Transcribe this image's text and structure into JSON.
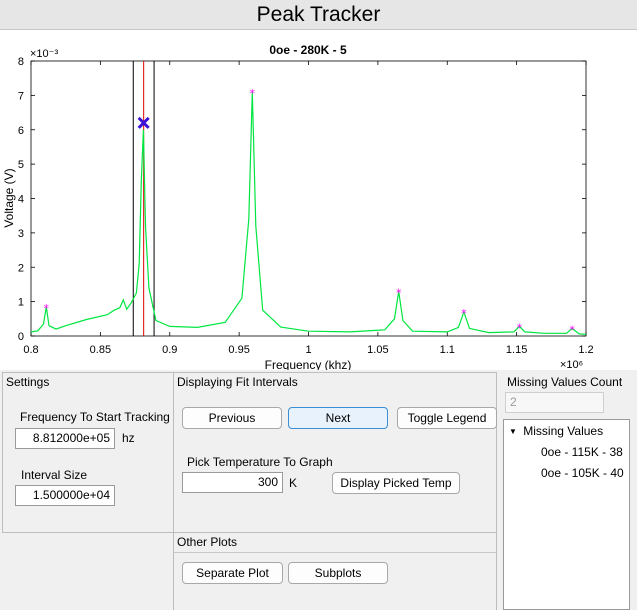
{
  "window": {
    "title": "Peak Tracker"
  },
  "chart_data": {
    "type": "line",
    "title": "0oe - 280K - 5",
    "xlabel": "Frequency (khz)",
    "ylabel": "Voltage (V)",
    "x_exponent": "×10⁶",
    "y_exponent": "×10⁻³",
    "xlim": [
      0.8,
      1.2
    ],
    "ylim": [
      0,
      8
    ],
    "xticks": [
      "0.8",
      "0.85",
      "0.9",
      "0.95",
      "1",
      "1.05",
      "1.1",
      "1.15",
      "1.2"
    ],
    "yticks": [
      "0",
      "1",
      "2",
      "3",
      "4",
      "5",
      "6",
      "7",
      "8"
    ],
    "grid": false,
    "series": [
      {
        "color": "#00e640",
        "x": [
          0.8,
          0.805,
          0.809,
          0.811,
          0.813,
          0.818,
          0.825,
          0.84,
          0.855,
          0.86,
          0.864,
          0.8665,
          0.869,
          0.872,
          0.876,
          0.878,
          0.8795,
          0.881,
          0.8825,
          0.885,
          0.89,
          0.9,
          0.92,
          0.94,
          0.952,
          0.957,
          0.9595,
          0.962,
          0.967,
          0.98,
          1.0,
          1.03,
          1.055,
          1.062,
          1.065,
          1.068,
          1.075,
          1.1,
          1.108,
          1.112,
          1.116,
          1.13,
          1.148,
          1.152,
          1.156,
          1.17,
          1.186,
          1.19,
          1.195,
          1.2
        ],
        "y": [
          0.12,
          0.15,
          0.35,
          0.85,
          0.3,
          0.2,
          0.3,
          0.48,
          0.62,
          0.75,
          0.82,
          1.05,
          0.78,
          0.95,
          1.25,
          2.1,
          4.5,
          6.0,
          3.2,
          1.4,
          0.45,
          0.28,
          0.25,
          0.4,
          1.1,
          3.4,
          7.1,
          3.2,
          0.75,
          0.26,
          0.14,
          0.12,
          0.18,
          0.5,
          1.3,
          0.45,
          0.14,
          0.12,
          0.25,
          0.7,
          0.22,
          0.1,
          0.12,
          0.28,
          0.12,
          0.08,
          0.08,
          0.22,
          0.06,
          0.05
        ]
      }
    ],
    "peaks": [
      {
        "x": 0.811,
        "y": 0.85
      },
      {
        "x": 0.9595,
        "y": 7.1
      },
      {
        "x": 1.065,
        "y": 1.3
      },
      {
        "x": 1.112,
        "y": 0.7
      },
      {
        "x": 1.152,
        "y": 0.28
      },
      {
        "x": 1.19,
        "y": 0.22
      }
    ],
    "tracked_point": {
      "x": 0.8812,
      "y": 6.2
    },
    "interval_lines": {
      "left": 0.8737,
      "center": 0.8812,
      "right": 0.8887
    }
  },
  "settings": {
    "title": "Settings",
    "freq_label": "Frequency To Start Tracking",
    "freq_value": "8.812000e+05",
    "freq_unit": "hz",
    "interval_label": "Interval Size",
    "interval_value": "1.500000e+04"
  },
  "fit": {
    "title": "Displaying Fit Intervals",
    "previous": "Previous",
    "next": "Next",
    "toggle_legend": "Toggle Legend",
    "pick_label": "Pick Temperature To Graph",
    "temp_value": "300",
    "temp_unit": "K",
    "display_picked": "Display Picked Temp"
  },
  "other": {
    "title": "Other Plots",
    "separate": "Separate Plot",
    "subplots": "Subplots"
  },
  "missing": {
    "count_label": "Missing Values Count",
    "count_value": "2",
    "tree_root": "Missing Values",
    "items": [
      "0oe - 115K - 38",
      "0oe - 105K - 40"
    ]
  }
}
